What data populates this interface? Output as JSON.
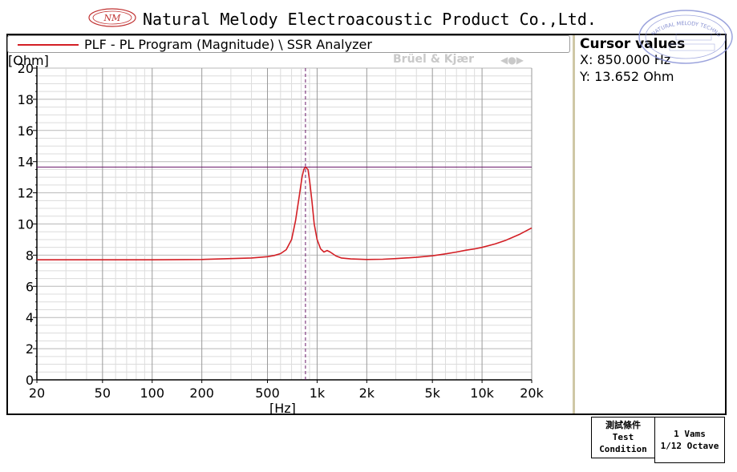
{
  "header": {
    "title": "Natural Melody Electroacoustic Product Co.,Ltd.",
    "logo_text": "NM",
    "stamp_text": "NATURAL MELODY TECHNOLOGY INC."
  },
  "legend": {
    "label": "PLF - PL Program (Magnitude) \\ SSR Analyzer",
    "brand": "Brüel & Kjær"
  },
  "cursor": {
    "title": "Cursor values",
    "x": "X: 850.000 Hz",
    "y": "Y: 13.652 Ohm"
  },
  "conditions": {
    "label_cn": "測試條件",
    "label_en_1": "Test",
    "label_en_2": "Condition",
    "value_1": "1 Vams",
    "value_2": "1/12 Octave"
  },
  "chart_data": {
    "type": "line",
    "xlabel": "[Hz]",
    "ylabel": "[Ohm]",
    "x_scale": "log",
    "xlim": [
      20,
      20000
    ],
    "ylim": [
      0,
      20
    ],
    "x_ticks": [
      {
        "value": 20,
        "label": "20"
      },
      {
        "value": 50,
        "label": "50"
      },
      {
        "value": 100,
        "label": "100"
      },
      {
        "value": 200,
        "label": "200"
      },
      {
        "value": 500,
        "label": "500"
      },
      {
        "value": 1000,
        "label": "1k"
      },
      {
        "value": 2000,
        "label": "2k"
      },
      {
        "value": 5000,
        "label": "5k"
      },
      {
        "value": 10000,
        "label": "10k"
      },
      {
        "value": 20000,
        "label": "20k"
      }
    ],
    "y_ticks": [
      0,
      2,
      4,
      6,
      8,
      10,
      12,
      14,
      16,
      18,
      20
    ],
    "grid": true,
    "cursor": {
      "x": 850,
      "y": 13.652
    },
    "colors": {
      "series": "#d31f25",
      "cursor": "#6a1a6a",
      "grid_major": "#b8b8b8",
      "grid_minor": "#dcdcdc"
    },
    "series": [
      {
        "name": "PLF - PL Program (Magnitude) \\ SSR Analyzer",
        "x": [
          20,
          30,
          50,
          100,
          200,
          300,
          400,
          500,
          550,
          600,
          650,
          700,
          740,
          780,
          810,
          830,
          850,
          880,
          900,
          930,
          960,
          1000,
          1050,
          1100,
          1150,
          1200,
          1300,
          1400,
          1600,
          2000,
          2500,
          3000,
          4000,
          5000,
          6000,
          7000,
          8000,
          9000,
          10000,
          12000,
          14000,
          17000,
          20000
        ],
        "y": [
          7.7,
          7.7,
          7.7,
          7.7,
          7.72,
          7.78,
          7.82,
          7.9,
          7.98,
          8.1,
          8.35,
          9.0,
          10.2,
          11.8,
          13.0,
          13.5,
          13.65,
          13.5,
          12.8,
          11.5,
          10.0,
          9.0,
          8.4,
          8.2,
          8.3,
          8.2,
          7.95,
          7.82,
          7.76,
          7.72,
          7.74,
          7.78,
          7.86,
          7.96,
          8.08,
          8.2,
          8.32,
          8.4,
          8.5,
          8.72,
          8.96,
          9.35,
          9.75
        ]
      }
    ]
  }
}
